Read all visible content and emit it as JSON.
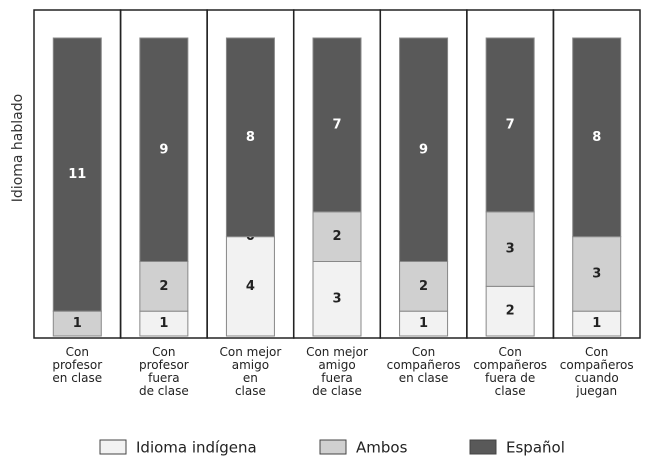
{
  "chart_data": {
    "type": "stacked-bar",
    "y_label": "Idioma hablado",
    "categories": [
      "Con\nprofesor\nen clase",
      "Con\nprofesor\nfuera\nde clase",
      "Con mejor\namigo\nen\nclase",
      "Con mejor\namigo\nfuera\nde clase",
      "Con\ncompañeros\nen clase",
      "Con\ncompañeros\nfuera de\nclase",
      "Con\ncompañeros\ncuando\njuegan"
    ],
    "series": [
      {
        "name": "Idioma indígena",
        "color": "#f2f2f2",
        "values": [
          null,
          1,
          4,
          3,
          1,
          2,
          1
        ]
      },
      {
        "name": "Ambos",
        "color": "#d0d0d0",
        "values": [
          1,
          2,
          0,
          2,
          2,
          3,
          3
        ]
      },
      {
        "name": "Español",
        "color": "#595959",
        "values": [
          11,
          9,
          8,
          7,
          9,
          7,
          8
        ]
      }
    ],
    "ylim": [
      0,
      12
    ]
  }
}
